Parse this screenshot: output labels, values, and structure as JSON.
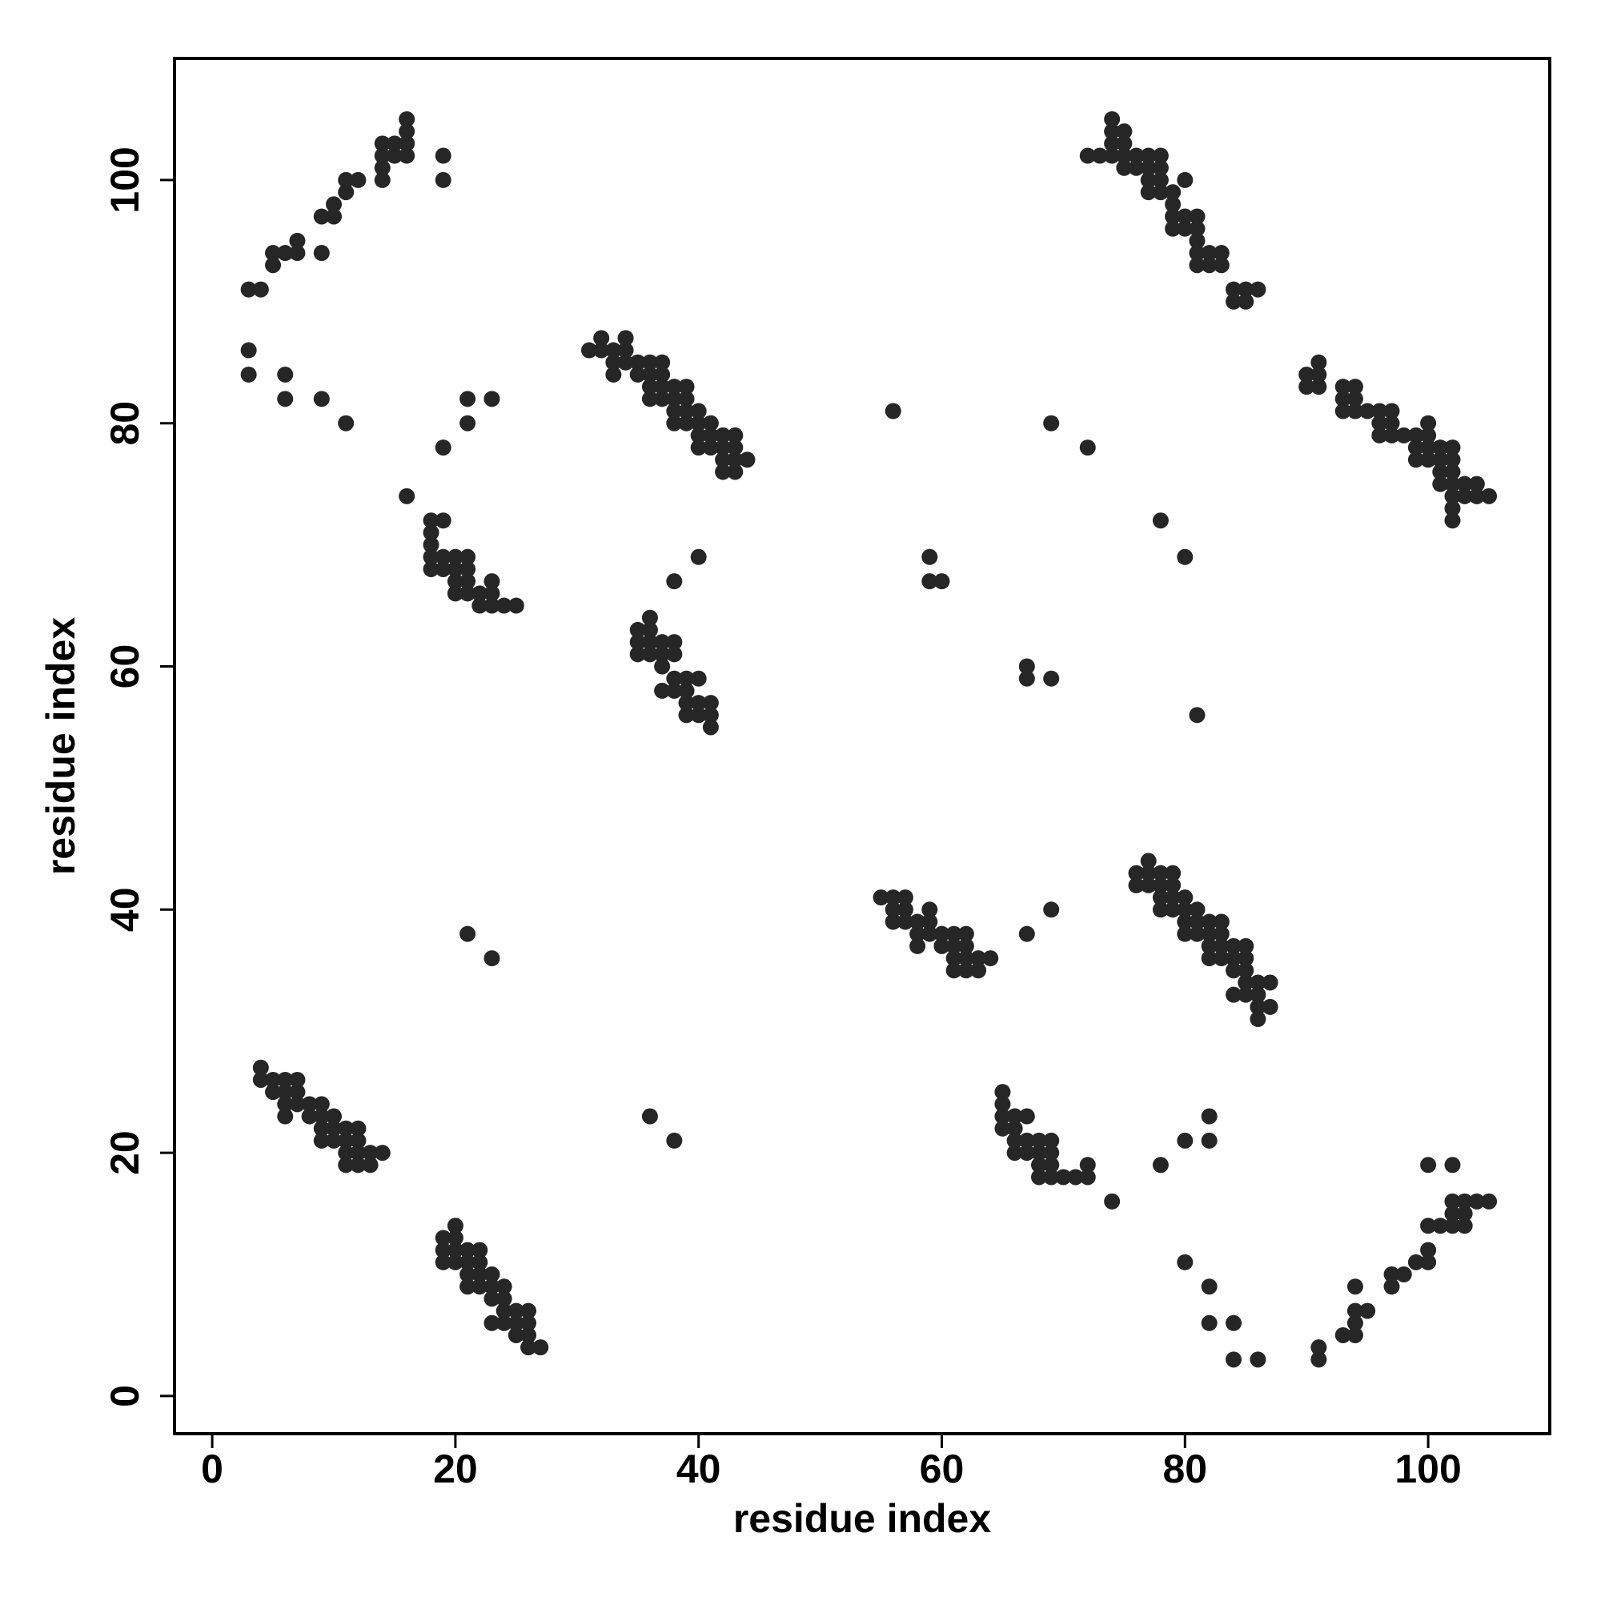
{
  "chart_data": {
    "type": "scatter",
    "xlabel": "residue index",
    "ylabel": "residue index",
    "xlim": [
      -3.1,
      110
    ],
    "ylim": [
      -3.1,
      110
    ],
    "xticks": [
      0,
      20,
      40,
      60,
      80,
      100
    ],
    "yticks": [
      0,
      20,
      40,
      60,
      80,
      100
    ],
    "series": [
      {
        "color": "#262626",
        "x": [
          3,
          4,
          5,
          5,
          6,
          7,
          7,
          9,
          9,
          10,
          10,
          11,
          11,
          12,
          14,
          14,
          14,
          14,
          15,
          15,
          16,
          16,
          16,
          16,
          19,
          19,
          3,
          3,
          6,
          6,
          9,
          11,
          21,
          21,
          23,
          19,
          16,
          18,
          19,
          18,
          18,
          18,
          19,
          20,
          21,
          18,
          19,
          20,
          21,
          20,
          21,
          23,
          20,
          21,
          22,
          23,
          22,
          23,
          24,
          25,
          31,
          32,
          32,
          33,
          33,
          33,
          34,
          34,
          34,
          35,
          35,
          36,
          36,
          36,
          36,
          37,
          37,
          37,
          37,
          38,
          38,
          38,
          38,
          39,
          39,
          39,
          39,
          40,
          40,
          40,
          40,
          41,
          41,
          41,
          42,
          42,
          42,
          42,
          43,
          43,
          43,
          43,
          44,
          35,
          35,
          35,
          36,
          36,
          36,
          36,
          37,
          37,
          37,
          37,
          38,
          38,
          38,
          38,
          39,
          39,
          39,
          39,
          40,
          40,
          40,
          41,
          41,
          41,
          38,
          40,
          21,
          23,
          36,
          38,
          4,
          4,
          5,
          5,
          6,
          6,
          6,
          6,
          7,
          7,
          7,
          8,
          8,
          9,
          9,
          9,
          9,
          10,
          10,
          10,
          11,
          11,
          11,
          11,
          12,
          12,
          12,
          12,
          13,
          13,
          14,
          19,
          19,
          19,
          20,
          20,
          20,
          20,
          21,
          21,
          21,
          21,
          22,
          22,
          22,
          22,
          23,
          23,
          23,
          23,
          24,
          24,
          24,
          24,
          25,
          25,
          25,
          26,
          26,
          26,
          26,
          27,
          72,
          73,
          74,
          74,
          74,
          74,
          75,
          75,
          75,
          75,
          76,
          76,
          77,
          77,
          77,
          77,
          78,
          78,
          78,
          78,
          79,
          79,
          79,
          79,
          80,
          80,
          80,
          81,
          81,
          81,
          81,
          81,
          82,
          82,
          83,
          83,
          84,
          84,
          85,
          85,
          86,
          90,
          90,
          91,
          91,
          91,
          93,
          93,
          93,
          94,
          94,
          94,
          95,
          96,
          96,
          96,
          97,
          97,
          97,
          98,
          99,
          99,
          99,
          100,
          100,
          100,
          100,
          101,
          101,
          101,
          101,
          102,
          102,
          102,
          102,
          102,
          102,
          102,
          103,
          103,
          104,
          104,
          105,
          56,
          69,
          72,
          78,
          80,
          59,
          59,
          60,
          67,
          67,
          69,
          81,
          67,
          69,
          55,
          56,
          56,
          56,
          57,
          57,
          57,
          58,
          58,
          58,
          59,
          59,
          59,
          60,
          60,
          61,
          61,
          61,
          61,
          62,
          62,
          62,
          62,
          63,
          63,
          64,
          76,
          76,
          77,
          77,
          77,
          78,
          78,
          78,
          78,
          79,
          79,
          79,
          79,
          80,
          80,
          80,
          80,
          81,
          81,
          81,
          82,
          82,
          82,
          82,
          83,
          83,
          83,
          83,
          84,
          84,
          84,
          84,
          85,
          85,
          85,
          85,
          85,
          86,
          86,
          86,
          86,
          87,
          87,
          65,
          65,
          65,
          65,
          66,
          66,
          66,
          66,
          67,
          67,
          67,
          68,
          68,
          68,
          68,
          69,
          69,
          69,
          69,
          70,
          71,
          72,
          72,
          74,
          78,
          80,
          82,
          82,
          80,
          82,
          82,
          84,
          84,
          86,
          91,
          91,
          93,
          94,
          94,
          94,
          94,
          95,
          97,
          97,
          98,
          99,
          100,
          100,
          100,
          100,
          101,
          102,
          102,
          102,
          102,
          103,
          103,
          103,
          104,
          105
        ],
        "values": [
          91,
          91,
          93,
          94,
          94,
          94,
          95,
          97,
          94,
          97,
          98,
          99,
          100,
          100,
          100,
          101,
          102,
          103,
          102,
          103,
          102,
          103,
          104,
          105,
          102,
          100,
          86,
          84,
          84,
          82,
          82,
          80,
          82,
          80,
          82,
          78,
          74,
          72,
          72,
          71,
          70,
          69,
          69,
          69,
          69,
          68,
          68,
          68,
          68,
          67,
          67,
          67,
          66,
          66,
          66,
          66,
          65,
          65,
          65,
          65,
          86,
          86,
          87,
          86,
          85,
          84,
          87,
          86,
          85,
          85,
          84,
          85,
          84,
          83,
          82,
          85,
          84,
          83,
          82,
          83,
          82,
          81,
          80,
          83,
          82,
          81,
          80,
          81,
          80,
          79,
          78,
          80,
          79,
          78,
          79,
          78,
          77,
          76,
          79,
          78,
          77,
          76,
          77,
          63,
          62,
          61,
          64,
          63,
          62,
          61,
          62,
          61,
          60,
          58,
          62,
          61,
          59,
          58,
          59,
          58,
          57,
          56,
          59,
          57,
          56,
          57,
          56,
          55,
          67,
          69,
          38,
          36,
          23,
          21,
          27,
          26,
          26,
          25,
          26,
          25,
          24,
          23,
          26,
          25,
          24,
          24,
          23,
          24,
          23,
          22,
          21,
          23,
          22,
          21,
          22,
          21,
          20,
          19,
          22,
          21,
          20,
          19,
          20,
          19,
          20,
          13,
          12,
          11,
          14,
          13,
          12,
          11,
          12,
          11,
          10,
          9,
          12,
          11,
          10,
          9,
          10,
          9,
          8,
          6,
          9,
          8,
          7,
          6,
          7,
          6,
          5,
          7,
          6,
          5,
          4,
          4,
          102,
          102,
          105,
          104,
          103,
          102,
          104,
          103,
          102,
          101,
          102,
          101,
          102,
          101,
          100,
          99,
          102,
          101,
          100,
          99,
          99,
          98,
          97,
          96,
          100,
          97,
          96,
          97,
          96,
          95,
          94,
          93,
          94,
          93,
          94,
          93,
          91,
          90,
          91,
          90,
          91,
          84,
          83,
          85,
          84,
          83,
          83,
          82,
          81,
          83,
          82,
          81,
          81,
          81,
          80,
          79,
          81,
          80,
          79,
          79,
          79,
          78,
          77,
          80,
          79,
          78,
          77,
          78,
          77,
          76,
          75,
          78,
          77,
          76,
          75,
          74,
          73,
          72,
          75,
          74,
          75,
          74,
          74,
          81,
          80,
          78,
          72,
          69,
          69,
          67,
          67,
          60,
          59,
          59,
          56,
          38,
          40,
          41,
          41,
          40,
          39,
          41,
          40,
          39,
          39,
          38,
          37,
          40,
          39,
          38,
          38,
          37,
          38,
          37,
          36,
          35,
          38,
          37,
          36,
          35,
          36,
          35,
          36,
          43,
          42,
          44,
          43,
          42,
          43,
          42,
          41,
          40,
          43,
          42,
          41,
          40,
          41,
          40,
          39,
          38,
          40,
          39,
          38,
          39,
          38,
          37,
          36,
          39,
          38,
          37,
          36,
          37,
          36,
          35,
          33,
          37,
          36,
          35,
          34,
          33,
          34,
          33,
          32,
          31,
          34,
          32,
          25,
          24,
          23,
          22,
          23,
          22,
          21,
          20,
          23,
          21,
          20,
          21,
          20,
          19,
          18,
          21,
          20,
          19,
          18,
          18,
          18,
          19,
          18,
          16,
          19,
          21,
          23,
          21,
          11,
          9,
          6,
          6,
          3,
          3,
          4,
          3,
          5,
          9,
          7,
          6,
          5,
          7,
          10,
          9,
          10,
          11,
          19,
          14,
          12,
          11,
          14,
          19,
          16,
          15,
          14,
          16,
          15,
          14,
          16,
          16
        ]
      }
    ]
  }
}
